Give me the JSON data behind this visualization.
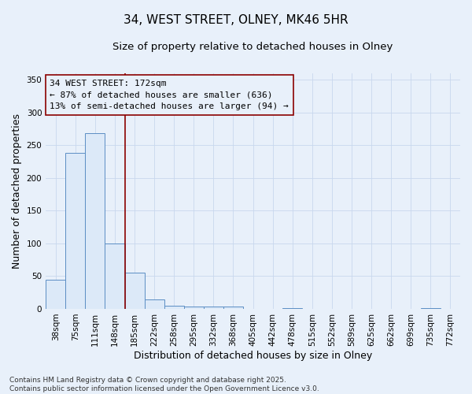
{
  "title_line1": "34, WEST STREET, OLNEY, MK46 5HR",
  "title_line2": "Size of property relative to detached houses in Olney",
  "xlabel": "Distribution of detached houses by size in Olney",
  "ylabel": "Number of detached properties",
  "footer_line1": "Contains HM Land Registry data © Crown copyright and database right 2025.",
  "footer_line2": "Contains public sector information licensed under the Open Government Licence v3.0.",
  "annotation_line1": "34 WEST STREET: 172sqm",
  "annotation_line2": "← 87% of detached houses are smaller (636)",
  "annotation_line3": "13% of semi-detached houses are larger (94) →",
  "bin_labels": [
    "38sqm",
    "75sqm",
    "111sqm",
    "148sqm",
    "185sqm",
    "222sqm",
    "258sqm",
    "295sqm",
    "332sqm",
    "368sqm",
    "405sqm",
    "442sqm",
    "478sqm",
    "515sqm",
    "552sqm",
    "589sqm",
    "625sqm",
    "662sqm",
    "699sqm",
    "735sqm",
    "772sqm"
  ],
  "bar_heights": [
    45,
    238,
    268,
    100,
    55,
    15,
    5,
    3,
    3,
    3,
    0,
    0,
    1,
    0,
    0,
    0,
    0,
    0,
    0,
    1,
    0
  ],
  "bar_color": "#dce9f8",
  "bar_edge_color": "#5b8ec4",
  "vline_x": 3.5,
  "vline_color": "#8B0000",
  "ylim": [
    0,
    360
  ],
  "yticks": [
    0,
    50,
    100,
    150,
    200,
    250,
    300,
    350
  ],
  "bg_color": "#e8f0fa",
  "grid_color": "#c8d8ee",
  "title_fontsize": 11,
  "subtitle_fontsize": 9.5,
  "axis_label_fontsize": 9,
  "tick_fontsize": 7.5,
  "annotation_fontsize": 8,
  "footer_fontsize": 6.5
}
